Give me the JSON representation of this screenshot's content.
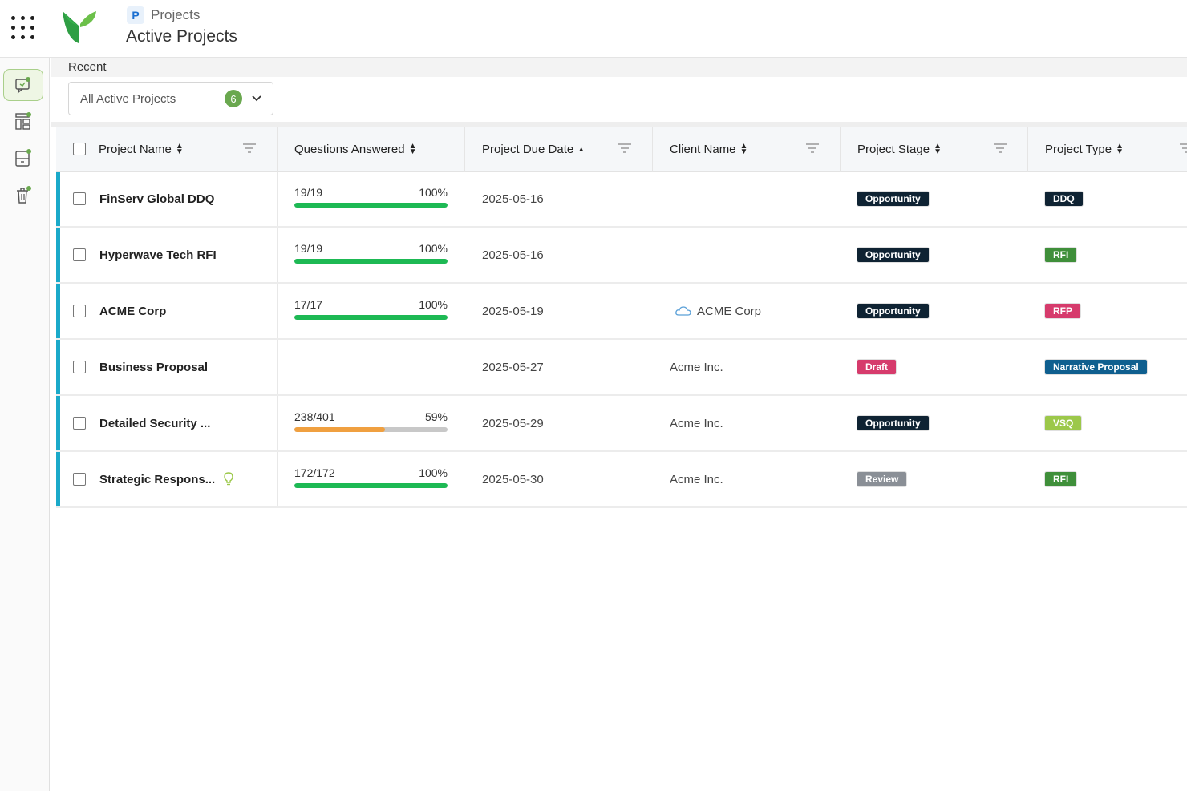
{
  "header": {
    "breadcrumb": "Projects",
    "breadcrumb_icon": "P",
    "title": "Active Projects"
  },
  "filter": {
    "recent_label": "Recent",
    "view_label": "All Active Projects",
    "count": "6"
  },
  "columns": {
    "project_name": "Project Name",
    "questions_answered": "Questions Answered",
    "due_date": "Project Due Date",
    "client_name": "Client Name",
    "project_stage": "Project Stage",
    "project_type": "Project Type"
  },
  "rows": [
    {
      "name": "FinServ Global DDQ",
      "answered": "19/19",
      "percent": "100%",
      "progress": 1.0,
      "bar_color": "#1db954",
      "due": "2025-05-16",
      "client": "",
      "stage": "Opportunity",
      "stage_color": "#0f2333",
      "type": "DDQ",
      "type_color": "#0f2333"
    },
    {
      "name": "Hyperwave Tech RFI",
      "answered": "19/19",
      "percent": "100%",
      "progress": 1.0,
      "bar_color": "#1db954",
      "due": "2025-05-16",
      "client": "",
      "stage": "Opportunity",
      "stage_color": "#0f2333",
      "type": "RFI",
      "type_color": "#3f8f3a"
    },
    {
      "name": "ACME Corp",
      "answered": "17/17",
      "percent": "100%",
      "progress": 1.0,
      "bar_color": "#1db954",
      "due": "2025-05-19",
      "client": "ACME Corp",
      "client_icon": "cloud-icon",
      "stage": "Opportunity",
      "stage_color": "#0f2333",
      "type": "RFP",
      "type_color": "#d63b6c"
    },
    {
      "name": "Business Proposal",
      "answered": "",
      "percent": "",
      "progress": null,
      "bar_color": "",
      "due": "2025-05-27",
      "client": "Acme Inc.",
      "stage": "Draft",
      "stage_color": "#d63b6c",
      "type": "Narrative Proposal",
      "type_color": "#0f5f8f"
    },
    {
      "name": "Detailed Security ...",
      "answered": "238/401",
      "percent": "59%",
      "progress": 0.59,
      "bar_color": "#f0a040",
      "due": "2025-05-29",
      "client": "Acme Inc.",
      "stage": "Opportunity",
      "stage_color": "#0f2333",
      "type": "VSQ",
      "type_color": "#9cc84a"
    },
    {
      "name": "Strategic Respons...",
      "answered": "172/172",
      "percent": "100%",
      "progress": 1.0,
      "bar_color": "#1db954",
      "due": "2025-05-30",
      "client": "Acme Inc.",
      "stage": "Review",
      "stage_color": "#8a8f96",
      "type": "RFI",
      "type_color": "#3f8f3a",
      "has_bulb": true
    }
  ]
}
